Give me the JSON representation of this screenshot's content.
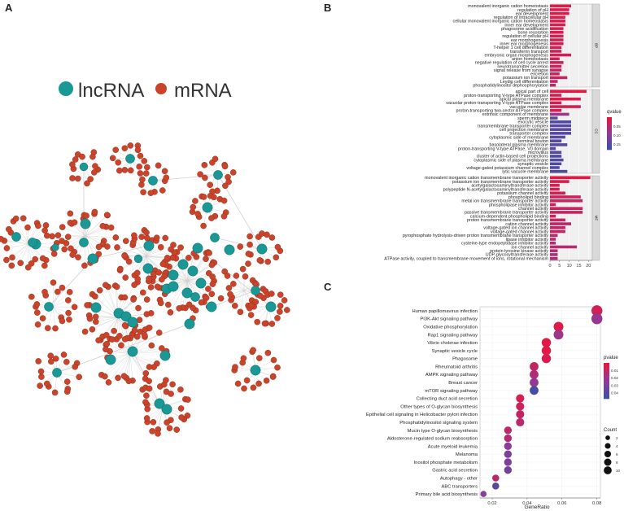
{
  "panels": {
    "a": "A",
    "b": "B",
    "c": "C"
  },
  "network": {
    "legend": [
      {
        "label": "lncRNA",
        "color": "#1a9896"
      },
      {
        "label": "mRNA",
        "color": "#c9442a"
      }
    ]
  },
  "colors": {
    "lncRNA": "#1a9896",
    "mRNA": "#c9442a",
    "edge": "#d0d0d0",
    "panel_bg": "#f0f0f0",
    "strip_bg": "#d9d9d9",
    "gradient_low": "#e8163f",
    "gradient_mid": "#8e3b96",
    "gradient_high": "#3c4ea5"
  },
  "chart_data": [
    {
      "type": "bar",
      "orientation": "horizontal",
      "xlim": [
        0,
        22
      ],
      "xticks": [
        0,
        5,
        10,
        15,
        20
      ],
      "legend": {
        "title": "qvalue",
        "ticks": [
          "0.05",
          "0.10",
          "0.15"
        ],
        "range": [
          0.0,
          0.18
        ]
      },
      "facets": [
        {
          "label": "BP",
          "categories": [
            "monovalent inorganic cation homeostasis",
            "regulation of pH",
            "ear development",
            "regulation of intracellular pH",
            "cellular monovalent inorganic cation homeostasis",
            "inner ear development",
            "phagosome acidification",
            "bone resorption",
            "regulation of cellular pH",
            "ear morphogenesis",
            "inner ear morphogenesis",
            "T-helper 1 cell differentiation",
            "transferrin transport",
            "embryonic organ morphogenesis",
            "anion homeostasis",
            "negative regulation of cell cycle arrest",
            "neurotransmitter secretion",
            "signal release from synapse",
            "excretion",
            "potassium ion transport",
            "Leydig cell differentiation",
            "phosphatidylinositol dephosphorylation"
          ],
          "values": [
            11,
            10,
            10,
            8,
            8,
            8,
            7,
            7,
            7,
            7,
            7,
            6,
            6,
            11,
            5,
            7,
            6,
            6,
            5,
            9,
            4,
            3
          ],
          "qvalues": [
            0.01,
            0.01,
            0.01,
            0.01,
            0.012,
            0.013,
            0.014,
            0.015,
            0.015,
            0.018,
            0.02,
            0.02,
            0.022,
            0.025,
            0.025,
            0.028,
            0.03,
            0.03,
            0.03,
            0.035,
            0.038,
            0.04
          ]
        },
        {
          "label": "CC",
          "categories": [
            "apical part of cell",
            "proton-transporting V-type ATPase complex",
            "apical plasma membrane",
            "vacuolar proton-transporting V-type ATPase complex",
            "vacuolar membrane",
            "proton-transporting two-sector ATPase complex",
            "extrinsic component of membrane",
            "sperm midpiece",
            "exocytic vesicle",
            "transmembrane transporter complex",
            "cell projection membrane",
            "transporter complex",
            "cytoplasmic side of membrane",
            "terminal bouton",
            "basolateral plasma membrane",
            "proton-transporting V-type ATPase, V0 domain",
            "microvillus",
            "cluster of actin-based cell projections",
            "cytoplasmic side of plasma membrane",
            "synaptic vesicle",
            "voltage-gated potassium channel complex",
            "lytic vacuole membrane"
          ],
          "values": [
            19,
            6,
            16,
            6,
            16,
            6,
            10,
            4,
            11,
            11,
            11,
            11,
            8,
            6,
            9,
            3,
            6,
            6,
            7,
            6,
            5,
            9
          ],
          "qvalues": [
            0.005,
            0.02,
            0.01,
            0.02,
            0.015,
            0.025,
            0.08,
            0.14,
            0.16,
            0.15,
            0.15,
            0.15,
            0.15,
            0.15,
            0.15,
            0.15,
            0.15,
            0.16,
            0.16,
            0.16,
            0.16,
            0.16
          ]
        },
        {
          "label": "MF",
          "categories": [
            "monovalent inorganic cation transmembrane transporter activity",
            "potassium ion transmembrane transporter activity",
            "acetylgalactosaminyltransferase activity",
            "polypeptide N-acetylgalactosaminyltransferase activity",
            "potassium channel activity",
            "phospholipid binding",
            "metal ion transmembrane transporter activity",
            "phospholipase inhibitor activity",
            "channel activity",
            "passive transmembrane transporter activity",
            "calcium-dependent phospholipid binding",
            "proton transmembrane transporter activity",
            "cation channel activity",
            "voltage-gated ion channel activity",
            "voltage-gated channel activity",
            "pyrophosphate hydrolysis-driven proton transmembrane transporter activity",
            "lipase inhibitor activity",
            "cysteine-type endopeptidase inhibitor activity",
            "ion channel activity",
            "protein tyrosine kinase activity",
            "UDP-glycosyltransferase activity",
            "ATPase activity, coupled to transmembrane movement of ions, rotational mechanism"
          ],
          "values": [
            21,
            10,
            5,
            5,
            8,
            16,
            17,
            3,
            17,
            17,
            3,
            8,
            11,
            8,
            8,
            4,
            3,
            3,
            14,
            4,
            4,
            4
          ],
          "qvalues": [
            0.005,
            0.01,
            0.02,
            0.02,
            0.02,
            0.025,
            0.03,
            0.03,
            0.03,
            0.03,
            0.035,
            0.035,
            0.04,
            0.04,
            0.04,
            0.045,
            0.045,
            0.045,
            0.05,
            0.05,
            0.055,
            0.06
          ]
        }
      ]
    },
    {
      "type": "scatter",
      "xlabel": "GeneRatio",
      "xlim": [
        0.013,
        0.082
      ],
      "xticks": [
        0.02,
        0.04,
        0.06,
        0.08
      ],
      "categories": [
        "Human papillomavirus infection",
        "PI3K-Akt signaling pathway",
        "Oxidative phosphorylation",
        "Rap1 signaling pathway",
        "Vibrio cholerae infection",
        "Synaptic vesicle cycle",
        "Phagosome",
        "Rheumatoid arthritis",
        "AMPK signaling pathway",
        "Breast cancer",
        "mTOR signaling pathway",
        "Collecting duct acid secretion",
        "Other types of O-glycan biosynthesis",
        "Epithelial cell signaling in Helicobacter pylori infection",
        "Phosphatidylinositol signaling system",
        "Mucin type O-glycan biosynthesis",
        "Aldosterone-regulated sodium reabsorption",
        "Acute myeloid leukemia",
        "Melanoma",
        "Inositol phosphate metabolism",
        "Gastric acid secretion",
        "Autophagy - other",
        "ABC transporters",
        "Primary bile acid biosynthesis"
      ],
      "gene_ratio": [
        0.08,
        0.08,
        0.058,
        0.058,
        0.051,
        0.051,
        0.051,
        0.044,
        0.044,
        0.044,
        0.044,
        0.036,
        0.036,
        0.036,
        0.036,
        0.029,
        0.029,
        0.029,
        0.029,
        0.029,
        0.029,
        0.022,
        0.022,
        0.015
      ],
      "count": [
        11,
        11,
        8,
        8,
        7,
        7,
        7,
        6,
        6,
        6,
        6,
        5,
        5,
        5,
        5,
        4,
        4,
        4,
        4,
        4,
        4,
        3,
        3,
        2
      ],
      "pvalue": [
        0.006,
        0.022,
        0.003,
        0.02,
        0.002,
        0.002,
        0.004,
        0.01,
        0.015,
        0.022,
        0.045,
        0.005,
        0.008,
        0.01,
        0.012,
        0.012,
        0.015,
        0.025,
        0.03,
        0.03,
        0.032,
        0.012,
        0.04,
        0.025
      ],
      "legend_pvalue": {
        "title": "pvalue",
        "ticks": [
          "0.01",
          "0.02",
          "0.03",
          "0.04"
        ],
        "range": [
          0.0,
          0.048
        ]
      },
      "legend_count": {
        "title": "Count",
        "values": [
          2,
          4,
          6,
          8,
          10
        ]
      }
    }
  ]
}
